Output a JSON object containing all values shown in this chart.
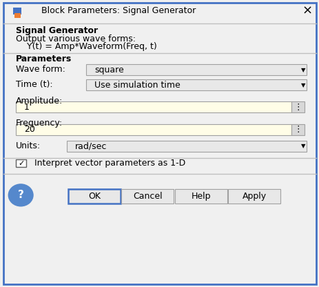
{
  "title": "Block Parameters: Signal Generator",
  "bg_color": "#F0F0F0",
  "border_color": "#4472C4",
  "title_bar_height": 0.072,
  "section1_title": "Signal Generator",
  "section1_desc1": "Output various wave forms:",
  "section1_desc2": "    Y(t) = Amp*Waveform(Freq, t)",
  "section2_title": "Parameters",
  "waveform_label": "Wave form:",
  "waveform_value": "square",
  "time_label": "Time (t):",
  "time_value": "Use simulation time",
  "amplitude_label": "Amplitude:",
  "amplitude_value": "1",
  "frequency_label": "Frequency:",
  "frequency_value": "20",
  "units_label": "Units:",
  "units_value": "rad/sec",
  "checkbox_label": "Interpret vector parameters as 1-D",
  "dropdown_bg": "#E8E8E8",
  "input_bg": "#FFFDE7",
  "text_color": "#000000",
  "separator_color": "#C0C0C0",
  "btn_bg": "#E8E8E8",
  "ok_border": "#4472C4",
  "other_border": "#A0A0A0",
  "icon_blue": "#4472C4",
  "icon_orange": "#ED7D31",
  "help_circle_color": "#5588CC"
}
